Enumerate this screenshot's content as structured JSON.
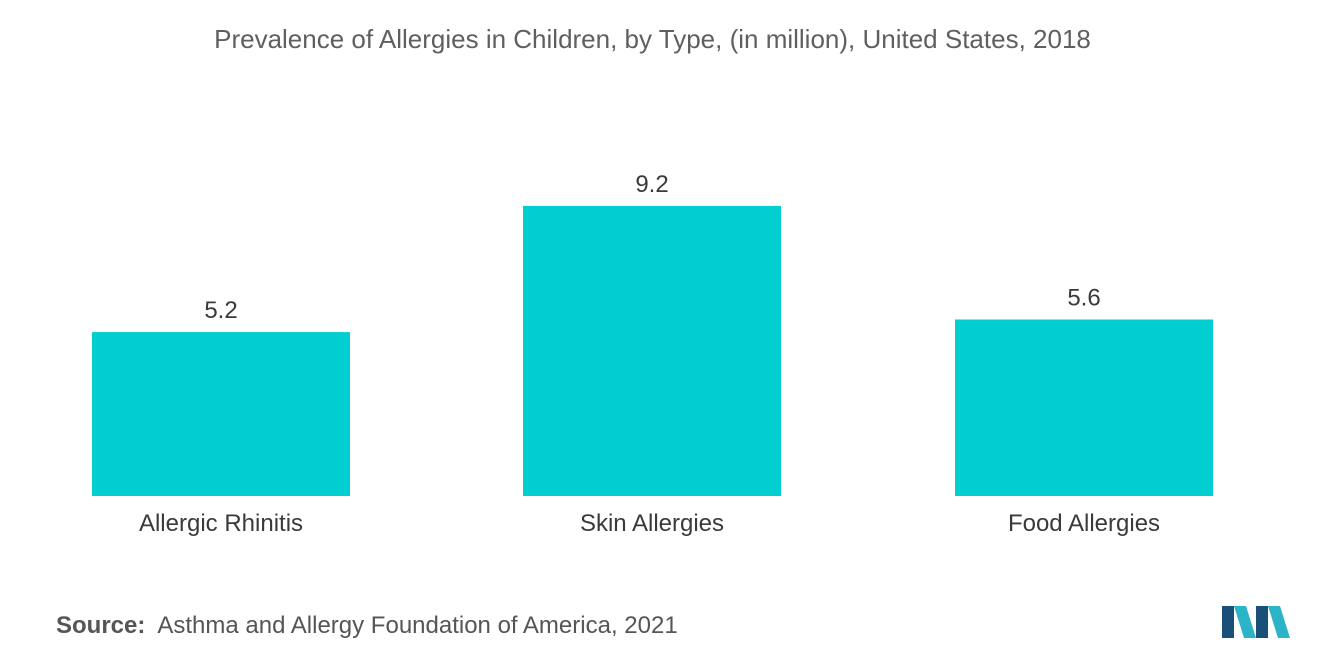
{
  "chart_data": {
    "type": "bar",
    "title": "Prevalence of Allergies in Children, by Type, (in million), United States, 2018",
    "categories": [
      "Allergic Rhinitis",
      "Skin Allergies",
      "Food Allergies"
    ],
    "values": [
      5.2,
      9.2,
      5.6
    ],
    "value_labels": [
      "5.2",
      "9.2",
      "5.6"
    ],
    "xlabel": "",
    "ylabel": "",
    "ylim": [
      0,
      9.2
    ],
    "grid": false,
    "legend": "none",
    "bar_color": "#00CED1"
  },
  "source": {
    "label": "Source:",
    "text": "Asthma and Allergy Foundation of America, 2021"
  },
  "logo": {
    "icon": "company-logo-icon",
    "colors": [
      "#1a4f7a",
      "#2bb3c8"
    ]
  }
}
